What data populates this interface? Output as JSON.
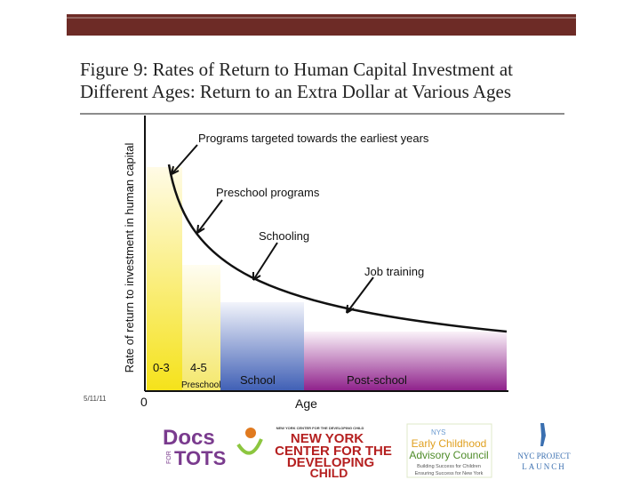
{
  "header": {
    "title_line1": "Figure 9:  Rates of Return to Human Capital Investment at",
    "title_line2": "Different Ages: Return to an Extra Dollar at Various Ages"
  },
  "diagram": {
    "y_axis_label": "Rate of return to investment in human capital",
    "x_axis_label": "Age",
    "origin_label": "0",
    "annotations": [
      "Programs targeted towards the earliest years",
      "Preschool programs",
      "Schooling",
      "Job training"
    ],
    "regions": [
      "0-3",
      "4-5",
      "Preschool",
      "School",
      "Post-school"
    ]
  },
  "footer": {
    "date": "5/11/11",
    "logos": {
      "docs": "Docs",
      "for": "FOR",
      "tots": "TOTS",
      "nycdc_small": "NEW YORK CENTER FOR THE DEVELOPING CHILD",
      "nycdc_1": "NEW YORK",
      "nycdc_2": "CENTER FOR THE",
      "nycdc_3": "DEVELOPING",
      "nycdc_4": "CHILD",
      "nys_1": "NYS",
      "nys_2": "Early Childhood",
      "nys_3": "Advisory Council",
      "nys_4": "Building Success for Children",
      "nys_5": "Ensuring Success for New York",
      "launch_1": "NYC PROJECT",
      "launch_2": "LAUNCH"
    }
  }
}
